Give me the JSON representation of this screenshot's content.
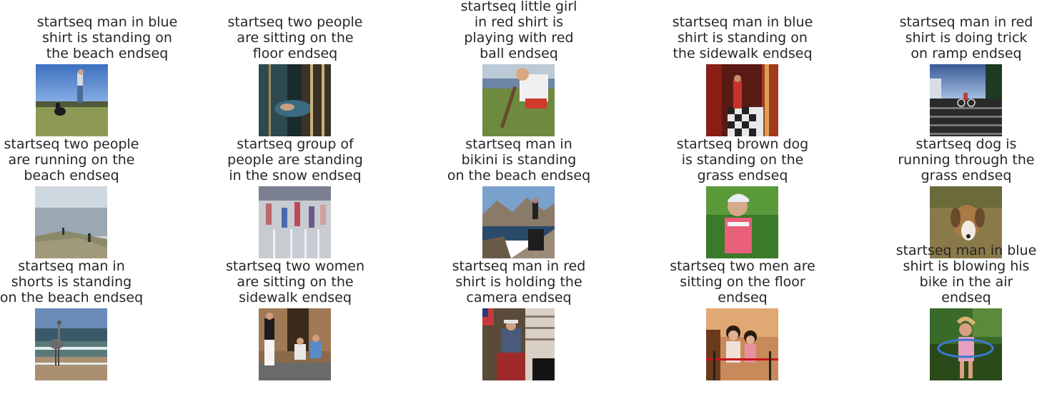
{
  "items": [
    {
      "caption": [
        "startseq man in blue",
        "shirt is standing on",
        "the beach endseq"
      ],
      "scene": "man-dog-field"
    },
    {
      "caption": [
        "startseq two people",
        "are sitting on the",
        "floor endseq"
      ],
      "scene": "dark-sleeping"
    },
    {
      "caption": [
        "startseq little girl",
        "in red shirt is",
        "playing with red",
        "ball endseq"
      ],
      "scene": "boy-bat-grass"
    },
    {
      "caption": [
        "startseq man in blue",
        "shirt is standing on",
        "the sidewalk endseq"
      ],
      "scene": "red-room"
    },
    {
      "caption": [
        "startseq man in red",
        "shirt is doing trick",
        "on ramp endseq"
      ],
      "scene": "bike-stairs"
    },
    {
      "caption": [
        "startseq two people",
        "are running on the",
        "beach endseq"
      ],
      "scene": "foggy-coast"
    },
    {
      "caption": [
        "startseq group of",
        "people are standing",
        "in the snow endseq"
      ],
      "scene": "fountain-kids"
    },
    {
      "caption": [
        "startseq man in",
        "bikini is standing",
        "on the beach endseq"
      ],
      "scene": "mountain-lake"
    },
    {
      "caption": [
        "startseq brown dog",
        "is standing on the",
        "grass endseq"
      ],
      "scene": "girl-pink"
    },
    {
      "caption": [
        "startseq dog is",
        "running through the",
        "grass endseq"
      ],
      "scene": "beagle"
    },
    {
      "caption": [
        "startseq man in",
        "shorts is standing",
        "on the beach endseq"
      ],
      "scene": "heron"
    },
    {
      "caption": [
        "startseq two women",
        "are sitting on the",
        "sidewalk endseq"
      ],
      "scene": "sitting-street"
    },
    {
      "caption": [
        "startseq man in red",
        "shirt is holding the",
        "camera endseq"
      ],
      "scene": "store-man"
    },
    {
      "caption": [
        "startseq two men are",
        "sitting on the floor",
        "endseq"
      ],
      "scene": "kids-rope"
    },
    {
      "caption": [
        "startseq man in blue",
        "shirt is blowing his",
        "bike in the air",
        "endseq"
      ],
      "scene": "girl-hoop"
    }
  ]
}
